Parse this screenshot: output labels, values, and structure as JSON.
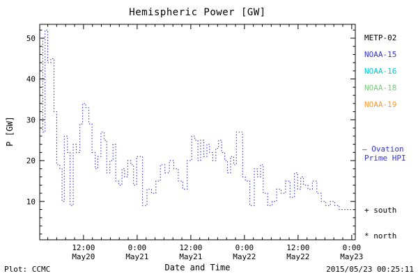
{
  "title": "Hemispheric Power [GW]",
  "axes": {
    "ylabel": "P [GW]",
    "xlabel": "Date and Time"
  },
  "footer": {
    "left": "Plot: CCMC",
    "right": "2015/05/23 00:25:11"
  },
  "legend": {
    "satellites": [
      {
        "label": "METP-02",
        "color": "#000000"
      },
      {
        "label": "NOAA-15",
        "color": "#3333cc"
      },
      {
        "label": "NOAA-16",
        "color": "#00cccc"
      },
      {
        "label": "NOAA-18",
        "color": "#77cc77"
      },
      {
        "label": "NOAA-19",
        "color": "#ff9933"
      }
    ],
    "line_marker": "–",
    "line_label_1": "Ovation",
    "line_label_2": "Prime HPI",
    "line_color": "#3333cc",
    "south_label": "+ south",
    "north_label": "* north"
  },
  "chart_data": {
    "type": "line",
    "style": "dotted-step",
    "title": "Hemispheric Power [GW]",
    "xlabel": "Date and Time",
    "ylabel": "P [GW]",
    "line_color": "#3333cc",
    "grid": false,
    "xlim_hours": [
      2.2,
      72.8
    ],
    "ylim": [
      0.6,
      53.4
    ],
    "y_ticks": [
      10,
      20,
      30,
      40,
      50
    ],
    "x_ticks": [
      {
        "hour": 12,
        "time": "12:00",
        "date": "May20"
      },
      {
        "hour": 24,
        "time": "0:00",
        "date": "May21"
      },
      {
        "hour": 36,
        "time": "12:00",
        "date": "May21"
      },
      {
        "hour": 48,
        "time": "0:00",
        "date": "May22"
      },
      {
        "hour": 60,
        "time": "12:00",
        "date": "May22"
      },
      {
        "hour": 72,
        "time": "0:00",
        "date": "May23"
      }
    ],
    "x_hours_from_may20_0000": [
      2.2,
      2.9,
      3.4,
      4.0,
      4.7,
      5.4,
      6.0,
      6.7,
      7.2,
      7.7,
      8.4,
      9.0,
      9.7,
      10.4,
      11.2,
      11.8,
      12.5,
      13.2,
      13.9,
      14.6,
      15.2,
      15.9,
      16.6,
      17.2,
      17.9,
      18.6,
      19.2,
      19.9,
      20.6,
      21.2,
      21.9,
      22.6,
      23.2,
      23.9,
      24.6,
      25.2,
      26.2,
      27.2,
      28.2,
      29.2,
      30.2,
      31.2,
      32.2,
      33.2,
      34.2,
      35.2,
      36.2,
      36.9,
      37.6,
      38.2,
      38.9,
      39.6,
      40.2,
      40.9,
      41.6,
      42.2,
      42.9,
      43.6,
      44.2,
      44.9,
      45.6,
      46.2,
      46.9,
      47.6,
      48.2,
      49.2,
      50.2,
      50.9,
      51.6,
      52.2,
      53.2,
      54.2,
      55.2,
      56.2,
      57.2,
      58.2,
      59.2,
      59.9,
      60.6,
      61.2,
      62.2,
      63.2,
      64.2,
      65.2,
      66.2,
      67.2,
      68.2,
      69.2,
      72.8
    ],
    "values_gw": [
      50,
      27,
      52,
      44,
      45,
      32,
      19,
      18,
      10,
      26,
      22,
      9,
      24,
      22,
      29,
      34,
      33,
      29,
      22,
      18,
      21,
      27,
      25,
      17,
      20,
      24,
      15,
      14,
      18,
      16,
      20,
      19,
      14,
      21,
      21,
      9,
      13,
      12,
      15,
      19,
      17,
      20,
      18,
      15,
      13,
      20,
      26,
      25,
      20,
      25,
      21,
      24,
      22,
      20,
      23,
      25,
      22,
      20,
      17,
      21,
      19,
      27,
      27,
      16,
      15,
      9,
      18,
      16,
      19,
      12,
      9,
      10,
      13,
      12,
      15,
      11,
      17,
      13,
      16,
      14,
      13,
      15,
      12,
      10,
      9,
      10,
      9,
      8,
      8
    ]
  }
}
